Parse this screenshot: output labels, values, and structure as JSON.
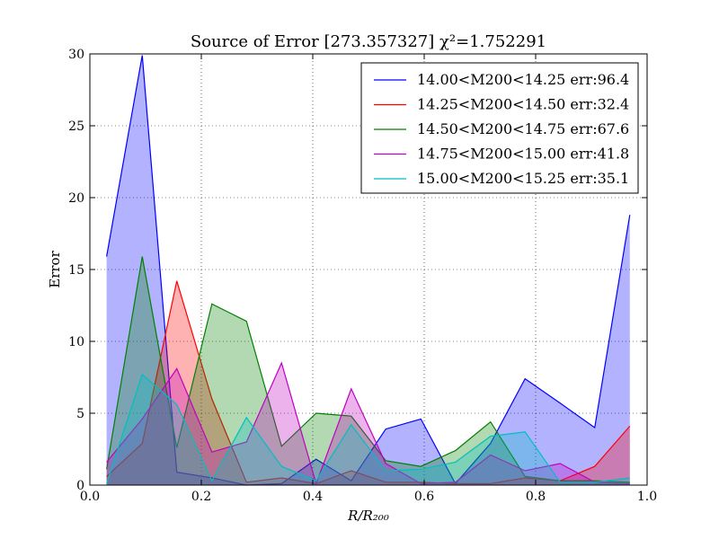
{
  "chart_data": {
    "type": "area",
    "title": "Source of Error [273.357327] χ²=1.752291",
    "xlabel": "R/R₂₀₀",
    "ylabel": "Error",
    "xlim": [
      0.0,
      1.0
    ],
    "ylim": [
      0,
      30
    ],
    "xticks": [
      0.0,
      0.2,
      0.4,
      0.6,
      0.8,
      1.0
    ],
    "xtick_labels": [
      "0.0",
      "0.2",
      "0.4",
      "0.6",
      "0.8",
      "1.0"
    ],
    "yticks": [
      0,
      5,
      10,
      15,
      20,
      25,
      30
    ],
    "ytick_labels": [
      "0",
      "5",
      "10",
      "15",
      "20",
      "25",
      "30"
    ],
    "grid": true,
    "legend_position": "top-right",
    "x": [
      0.03,
      0.094,
      0.156,
      0.219,
      0.281,
      0.344,
      0.406,
      0.469,
      0.531,
      0.594,
      0.656,
      0.719,
      0.781,
      0.844,
      0.906,
      0.969
    ],
    "series": [
      {
        "name": "14.00<M200<14.25 err:96.4",
        "color": "#0000ff",
        "values": [
          15.9,
          29.9,
          0.9,
          0.5,
          0.0,
          0.1,
          1.8,
          0.3,
          3.9,
          4.6,
          0.1,
          2.9,
          7.4,
          5.7,
          4.0,
          18.8
        ]
      },
      {
        "name": "14.25<M200<14.50 err:32.4",
        "color": "#ff0000",
        "values": [
          0.6,
          2.9,
          14.2,
          6.0,
          0.2,
          0.5,
          0.1,
          1.0,
          0.2,
          0.2,
          0.1,
          0.1,
          0.5,
          0.3,
          1.3,
          4.1
        ]
      },
      {
        "name": "14.50<M200<14.75 err:67.6",
        "color": "#008000",
        "values": [
          1.1,
          15.9,
          2.6,
          12.6,
          11.4,
          2.7,
          5.0,
          4.8,
          1.7,
          1.3,
          2.4,
          4.4,
          0.6,
          0.3,
          0.3,
          0.2
        ]
      },
      {
        "name": "14.75<M200<15.00 err:41.8",
        "color": "#bf00bf",
        "values": [
          1.6,
          4.6,
          8.1,
          2.3,
          3.0,
          8.5,
          0.1,
          6.7,
          1.5,
          0.1,
          0.2,
          2.1,
          1.0,
          1.5,
          0.2,
          0.1
        ]
      },
      {
        "name": "15.00<M200<15.25 err:35.1",
        "color": "#00bfbf",
        "values": [
          0.1,
          7.7,
          5.6,
          0.3,
          4.7,
          1.3,
          0.3,
          4.2,
          1.0,
          1.1,
          1.6,
          3.4,
          3.7,
          0.2,
          0.2,
          0.5
        ]
      }
    ]
  }
}
